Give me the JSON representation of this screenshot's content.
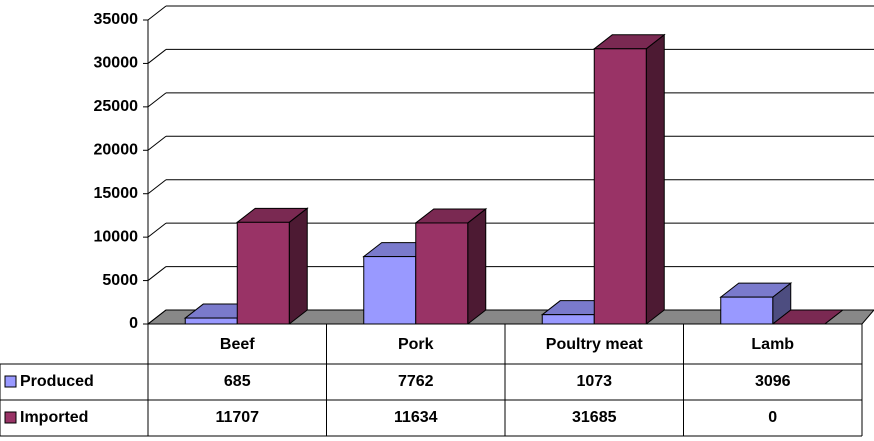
{
  "chart_data": {
    "type": "bar3d",
    "categories": [
      "Beef",
      "Pork",
      "Poultry meat",
      "Lamb"
    ],
    "series": [
      {
        "name": "Produced",
        "color": "#9999ff",
        "values": [
          685,
          7762,
          1073,
          3096
        ]
      },
      {
        "name": "Imported",
        "color": "#993366",
        "values": [
          11707,
          11634,
          31685,
          0
        ]
      }
    ],
    "ylim": [
      0,
      35000
    ],
    "yticks": [
      0,
      5000,
      10000,
      15000,
      20000,
      25000,
      30000,
      35000
    ],
    "grid": true
  }
}
